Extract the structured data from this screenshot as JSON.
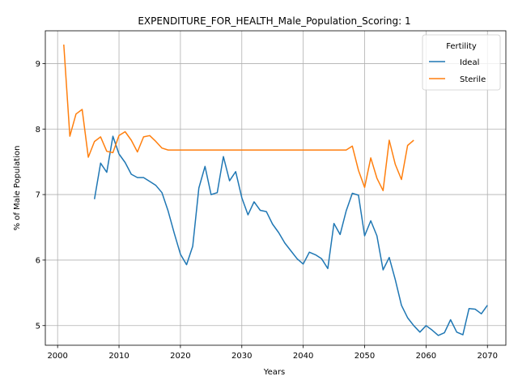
{
  "chart_data": {
    "type": "line",
    "title": "EXPENDITURE_FOR_HEALTH_Male_Population_Scoring: 1",
    "xlabel": "Years",
    "ylabel": "% of Male Population",
    "xlim": [
      1998,
      2073
    ],
    "ylim": [
      4.7,
      9.5
    ],
    "xticks": [
      2000,
      2010,
      2020,
      2030,
      2040,
      2050,
      2060,
      2070
    ],
    "yticks": [
      5,
      6,
      7,
      8,
      9
    ],
    "grid": true,
    "legend": {
      "title": "Fertility",
      "placement": "top-right"
    },
    "series": [
      {
        "name": "Ideal",
        "color": "#1f77b4",
        "x": [
          2006,
          2007,
          2008,
          2009,
          2010,
          2011,
          2012,
          2013,
          2014,
          2015,
          2016,
          2017,
          2018,
          2019,
          2020,
          2021,
          2022,
          2023,
          2024,
          2025,
          2026,
          2027,
          2028,
          2029,
          2030,
          2031,
          2032,
          2033,
          2034,
          2035,
          2036,
          2037,
          2038,
          2039,
          2040,
          2041,
          2042,
          2043,
          2044,
          2045,
          2046,
          2047,
          2048,
          2049,
          2050,
          2051,
          2052,
          2053,
          2054,
          2055,
          2056,
          2057,
          2058,
          2059,
          2060,
          2061,
          2062,
          2063,
          2064,
          2065,
          2066,
          2067,
          2068,
          2069,
          2070
        ],
        "y": [
          6.93,
          7.48,
          7.34,
          7.89,
          7.62,
          7.49,
          7.31,
          7.26,
          7.26,
          7.2,
          7.14,
          7.03,
          6.75,
          6.41,
          6.09,
          5.93,
          6.21,
          7.1,
          7.43,
          7.0,
          7.03,
          7.58,
          7.21,
          7.35,
          6.95,
          6.69,
          6.89,
          6.76,
          6.74,
          6.55,
          6.42,
          6.26,
          6.14,
          6.02,
          5.94,
          6.12,
          6.08,
          6.02,
          5.87,
          6.56,
          6.39,
          6.75,
          7.02,
          6.99,
          6.37,
          6.6,
          6.37,
          5.85,
          6.04,
          5.7,
          5.31,
          5.12,
          5.0,
          4.9,
          5.0,
          4.93,
          4.85,
          4.89,
          5.09,
          4.9,
          4.86,
          5.26,
          5.25,
          5.18,
          5.31
        ]
      },
      {
        "name": "Sterile",
        "color": "#ff7f0e",
        "x": [
          2001,
          2002,
          2003,
          2004,
          2005,
          2006,
          2007,
          2008,
          2009,
          2010,
          2011,
          2012,
          2013,
          2014,
          2015,
          2016,
          2017,
          2018,
          2019,
          2020,
          2021,
          2022,
          2023,
          2024,
          2025,
          2026,
          2027,
          2028,
          2029,
          2030,
          2031,
          2032,
          2033,
          2034,
          2035,
          2036,
          2037,
          2038,
          2039,
          2040,
          2041,
          2042,
          2043,
          2044,
          2045,
          2046,
          2047,
          2048,
          2049,
          2050,
          2051,
          2052,
          2053,
          2054,
          2055,
          2056,
          2057,
          2058
        ],
        "y": [
          9.29,
          7.89,
          8.23,
          8.3,
          7.57,
          7.81,
          7.88,
          7.66,
          7.64,
          7.9,
          7.96,
          7.83,
          7.65,
          7.88,
          7.9,
          7.81,
          7.71,
          7.68,
          7.68,
          7.68,
          7.68,
          7.68,
          7.68,
          7.68,
          7.68,
          7.68,
          7.68,
          7.68,
          7.68,
          7.68,
          7.68,
          7.68,
          7.68,
          7.68,
          7.68,
          7.68,
          7.68,
          7.68,
          7.68,
          7.68,
          7.68,
          7.68,
          7.68,
          7.68,
          7.68,
          7.68,
          7.68,
          7.74,
          7.37,
          7.11,
          7.56,
          7.25,
          7.06,
          7.83,
          7.46,
          7.23,
          7.75,
          7.83
        ]
      }
    ]
  }
}
